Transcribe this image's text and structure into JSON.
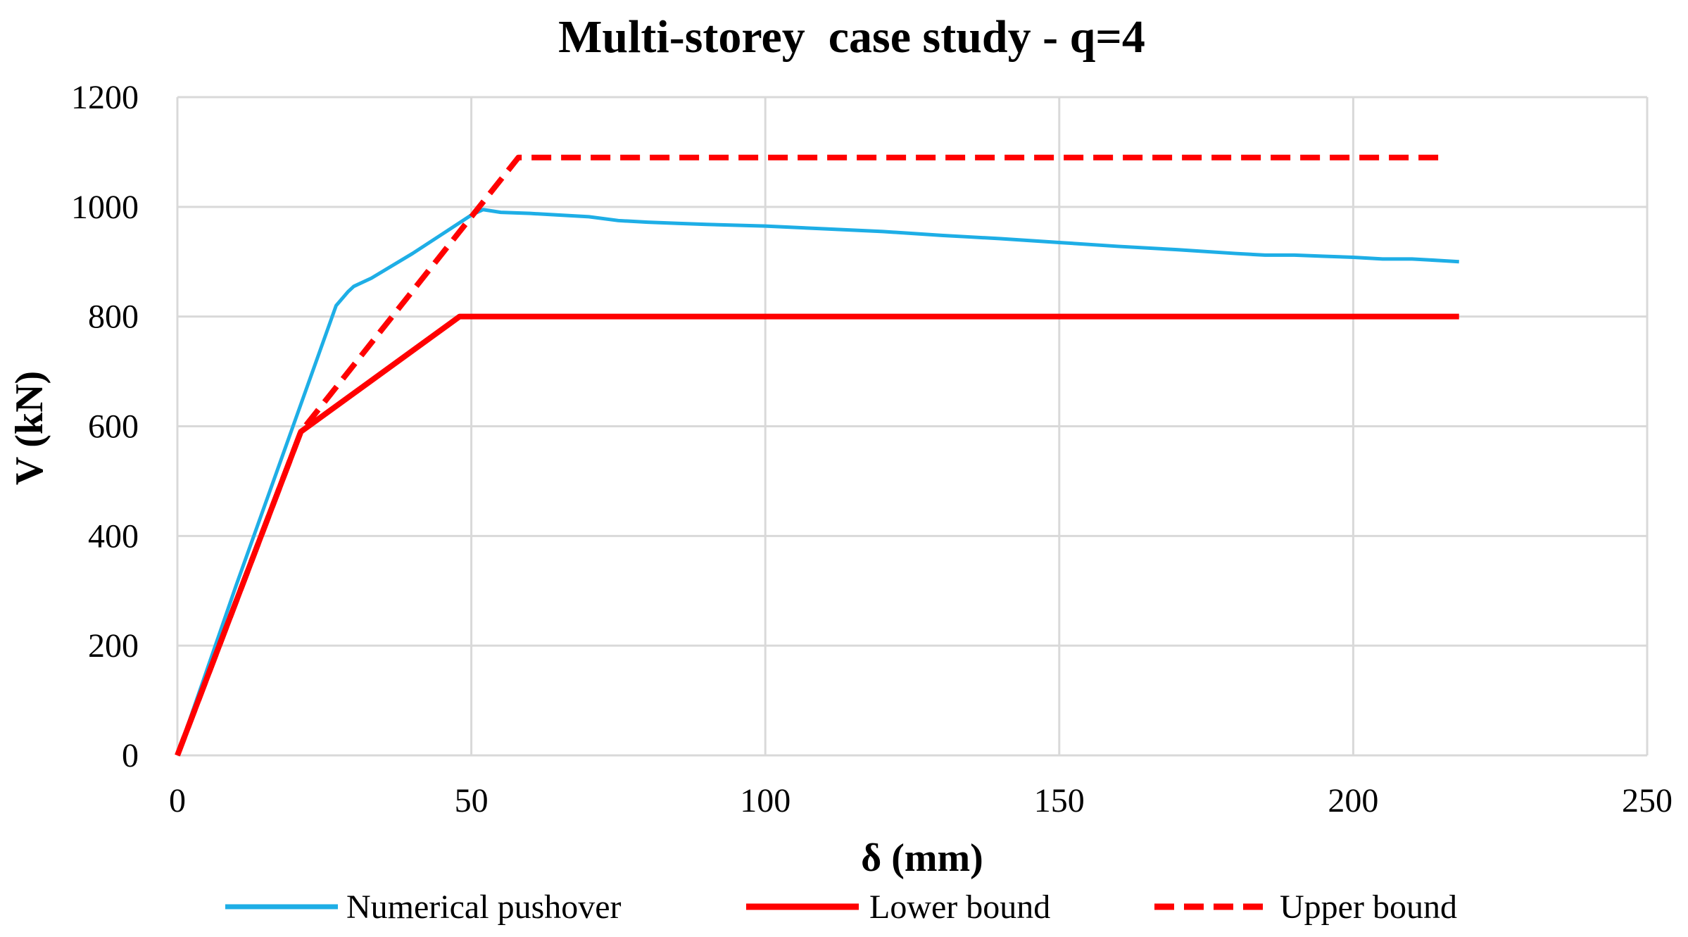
{
  "chart_data": {
    "type": "line",
    "title": "Multi-storey  case study - q=4",
    "xlabel": "δ (mm)",
    "ylabel": "V (kN)",
    "xlim": [
      0,
      250
    ],
    "ylim": [
      0,
      1200
    ],
    "x_ticks": [
      "0",
      "50",
      "100",
      "150",
      "200",
      "250"
    ],
    "y_ticks": [
      "0",
      "200",
      "400",
      "600",
      "800",
      "1000",
      "1200"
    ],
    "grid": true,
    "legend_position": "bottom",
    "series": [
      {
        "name": "Numerical pushover",
        "color": "#1eaee6",
        "style": "solid",
        "points": [
          [
            0,
            0
          ],
          [
            5,
            155
          ],
          [
            10,
            310
          ],
          [
            15,
            460
          ],
          [
            20,
            610
          ],
          [
            24,
            730
          ],
          [
            27,
            820
          ],
          [
            29,
            845
          ],
          [
            30,
            855
          ],
          [
            33,
            870
          ],
          [
            40,
            915
          ],
          [
            45,
            950
          ],
          [
            50,
            985
          ],
          [
            52,
            995
          ],
          [
            55,
            990
          ],
          [
            60,
            988
          ],
          [
            65,
            985
          ],
          [
            70,
            982
          ],
          [
            75,
            975
          ],
          [
            80,
            972
          ],
          [
            85,
            970
          ],
          [
            90,
            968
          ],
          [
            100,
            965
          ],
          [
            110,
            960
          ],
          [
            120,
            955
          ],
          [
            130,
            948
          ],
          [
            135,
            945
          ],
          [
            140,
            942
          ],
          [
            150,
            935
          ],
          [
            160,
            928
          ],
          [
            170,
            922
          ],
          [
            180,
            915
          ],
          [
            185,
            912
          ],
          [
            190,
            912
          ],
          [
            195,
            910
          ],
          [
            200,
            908
          ],
          [
            205,
            905
          ],
          [
            210,
            905
          ],
          [
            215,
            902
          ],
          [
            218,
            900
          ]
        ]
      },
      {
        "name": "Lower bound",
        "color": "#ff0000",
        "style": "solid",
        "points": [
          [
            0,
            0
          ],
          [
            21,
            590
          ],
          [
            48,
            800
          ],
          [
            218,
            800
          ]
        ]
      },
      {
        "name": "Upper bound",
        "color": "#ff0000",
        "style": "dashed",
        "points": [
          [
            0,
            0
          ],
          [
            21,
            590
          ],
          [
            58,
            1090
          ],
          [
            216,
            1090
          ]
        ]
      }
    ]
  }
}
